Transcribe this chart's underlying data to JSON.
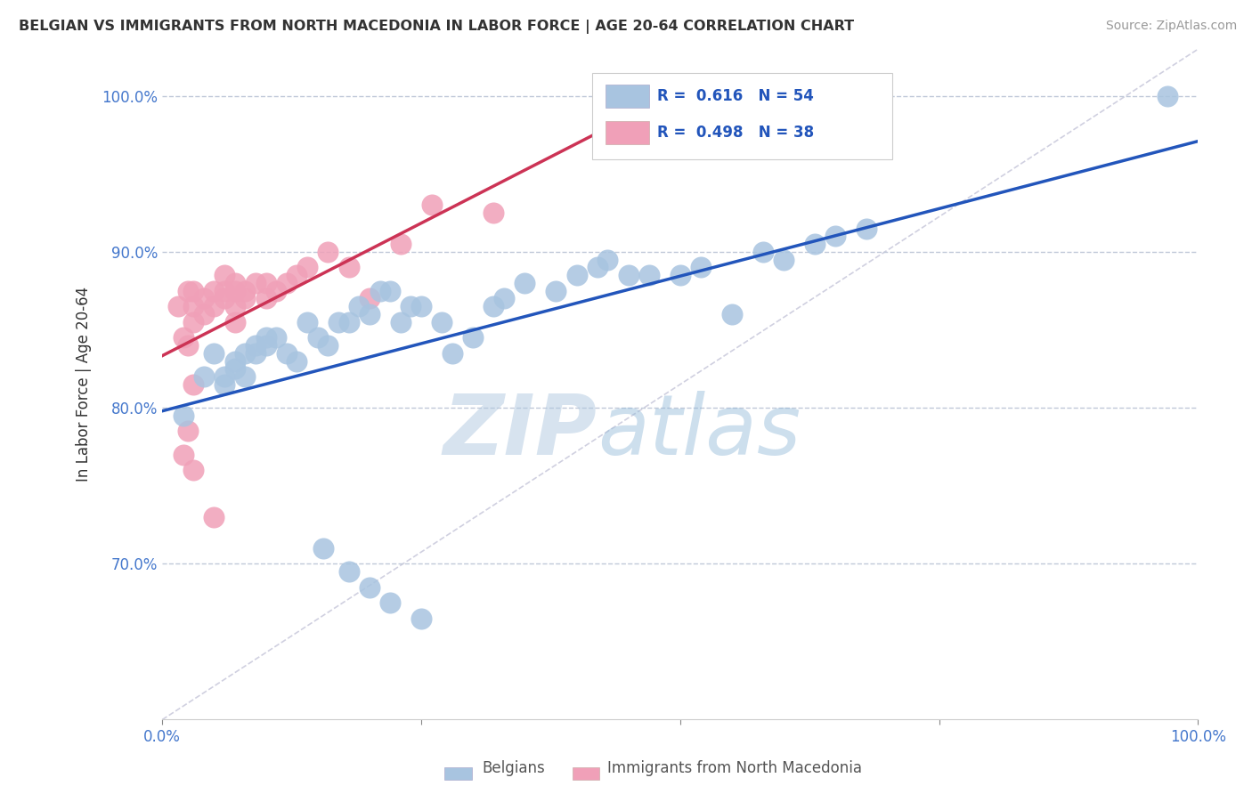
{
  "title": "BELGIAN VS IMMIGRANTS FROM NORTH MACEDONIA IN LABOR FORCE | AGE 20-64 CORRELATION CHART",
  "source": "Source: ZipAtlas.com",
  "ylabel": "In Labor Force | Age 20-64",
  "legend_r1_val": "0.616",
  "legend_n1_val": "54",
  "legend_r2_val": "0.498",
  "legend_n2_val": "38",
  "xmin": 0.0,
  "xmax": 1.0,
  "ymin": 0.6,
  "ymax": 1.03,
  "yticks": [
    0.7,
    0.8,
    0.9,
    1.0
  ],
  "ytick_labels": [
    "70.0%",
    "80.0%",
    "90.0%",
    "100.0%"
  ],
  "blue_color": "#a8c4e0",
  "pink_color": "#f0a0b8",
  "blue_line_color": "#2255bb",
  "pink_line_color": "#cc3355",
  "grid_color": "#c0c8d8",
  "diag_color": "#d0d0e0",
  "background": "#ffffff",
  "blue_scatter_x": [
    0.02,
    0.04,
    0.05,
    0.06,
    0.06,
    0.07,
    0.07,
    0.08,
    0.08,
    0.09,
    0.09,
    0.1,
    0.1,
    0.11,
    0.12,
    0.13,
    0.14,
    0.15,
    0.16,
    0.17,
    0.18,
    0.19,
    0.2,
    0.21,
    0.22,
    0.23,
    0.24,
    0.25,
    0.27,
    0.28,
    0.3,
    0.32,
    0.33,
    0.35,
    0.38,
    0.4,
    0.42,
    0.43,
    0.45,
    0.47,
    0.5,
    0.52,
    0.55,
    0.58,
    0.6,
    0.63,
    0.65,
    0.68,
    0.155,
    0.18,
    0.2,
    0.22,
    0.25,
    0.97
  ],
  "blue_scatter_y": [
    0.795,
    0.82,
    0.835,
    0.815,
    0.82,
    0.825,
    0.83,
    0.82,
    0.835,
    0.835,
    0.84,
    0.84,
    0.845,
    0.845,
    0.835,
    0.83,
    0.855,
    0.845,
    0.84,
    0.855,
    0.855,
    0.865,
    0.86,
    0.875,
    0.875,
    0.855,
    0.865,
    0.865,
    0.855,
    0.835,
    0.845,
    0.865,
    0.87,
    0.88,
    0.875,
    0.885,
    0.89,
    0.895,
    0.885,
    0.885,
    0.885,
    0.89,
    0.86,
    0.9,
    0.895,
    0.905,
    0.91,
    0.915,
    0.71,
    0.695,
    0.685,
    0.675,
    0.665,
    1.0
  ],
  "pink_scatter_x": [
    0.015,
    0.02,
    0.02,
    0.025,
    0.025,
    0.03,
    0.03,
    0.03,
    0.03,
    0.04,
    0.04,
    0.05,
    0.05,
    0.05,
    0.06,
    0.06,
    0.06,
    0.07,
    0.07,
    0.07,
    0.07,
    0.08,
    0.08,
    0.09,
    0.1,
    0.1,
    0.11,
    0.12,
    0.13,
    0.14,
    0.16,
    0.18,
    0.2,
    0.23,
    0.26,
    0.32,
    0.025,
    0.03
  ],
  "pink_scatter_y": [
    0.865,
    0.845,
    0.77,
    0.875,
    0.84,
    0.875,
    0.865,
    0.855,
    0.815,
    0.87,
    0.86,
    0.875,
    0.865,
    0.73,
    0.885,
    0.875,
    0.87,
    0.88,
    0.875,
    0.865,
    0.855,
    0.875,
    0.87,
    0.88,
    0.88,
    0.87,
    0.875,
    0.88,
    0.885,
    0.89,
    0.9,
    0.89,
    0.87,
    0.905,
    0.93,
    0.925,
    0.785,
    0.76
  ]
}
